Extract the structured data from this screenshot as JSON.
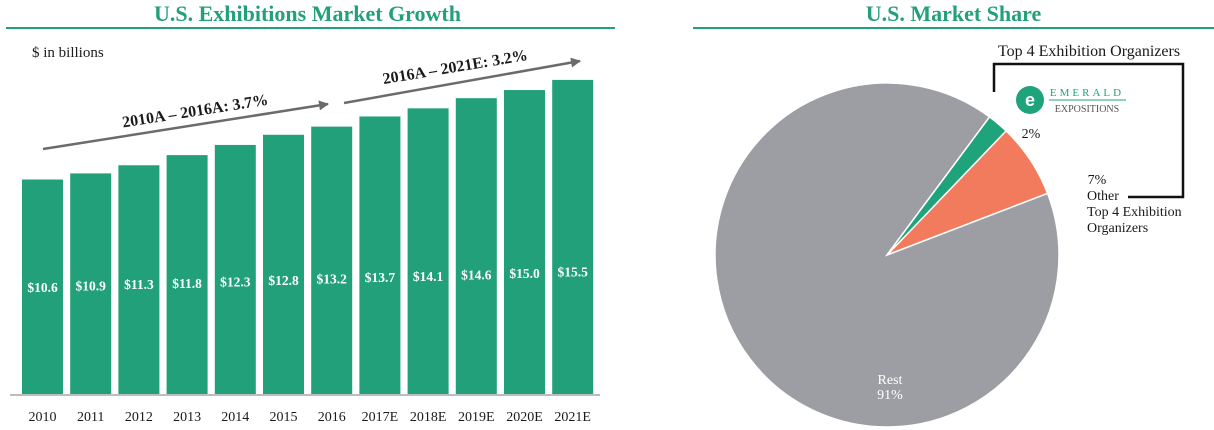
{
  "colors": {
    "accent": "#22a07a",
    "bar": "#22a07a",
    "arrow": "#6b6b6b",
    "rest": "#9d9ea3",
    "emerald": "#1fa37a",
    "other": "#f27b5d"
  },
  "chart_data": [
    {
      "type": "bar",
      "title": "U.S. Exhibitions Market Growth",
      "subtitle": "$ in billions",
      "xlabel": "",
      "ylabel": "",
      "categories": [
        "2010",
        "2011",
        "2012",
        "2013",
        "2014",
        "2015",
        "2016",
        "2017E",
        "2018E",
        "2019E",
        "2020E",
        "2021E"
      ],
      "values": [
        10.6,
        10.9,
        11.3,
        11.8,
        12.3,
        12.8,
        13.2,
        13.7,
        14.1,
        14.6,
        15.0,
        15.5
      ],
      "data_labels": [
        "$10.6",
        "$10.9",
        "$11.3",
        "$11.8",
        "$12.3",
        "$12.8",
        "$13.2",
        "$13.7",
        "$14.1",
        "$14.6",
        "$15.0",
        "$15.5"
      ],
      "annotations": [
        "2010A – 2016A: 3.7%",
        "2016A – 2021E: 3.2%"
      ],
      "grid": false
    },
    {
      "type": "pie",
      "title": "U.S. Market Share",
      "slices": [
        {
          "label": "Rest",
          "value": 91,
          "display": "91%"
        },
        {
          "label": "Emerald Expositions",
          "value": 2,
          "display": "2%"
        },
        {
          "label": "Other Top 4 Exhibition Organizers",
          "value": 7,
          "display": "7%"
        }
      ],
      "callout_title": "Top 4 Exhibition Organizers",
      "logo": {
        "word1": "EMERALD",
        "word2": "EXPOSITIONS",
        "icon": "emerald-e-logo-icon"
      },
      "labels": {
        "rest_name": "Rest",
        "rest_pct": "91%",
        "emerald_pct": "2%",
        "other_pct": "7%",
        "other_line1": "Other",
        "other_line2": "Top 4 Exhibition",
        "other_line3": "Organizers"
      }
    }
  ]
}
